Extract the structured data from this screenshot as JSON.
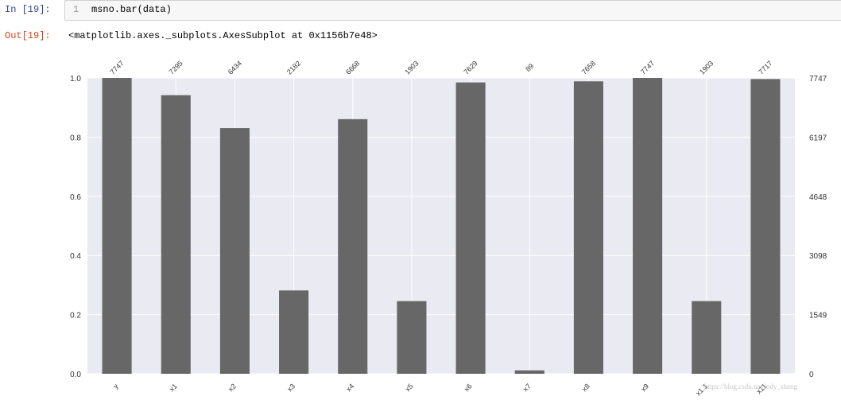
{
  "cell": {
    "in_prompt": "In [19]:",
    "line_number": "1",
    "code": "msno.bar(data)",
    "out_prompt": "Out[19]:",
    "output": "<matplotlib.axes._subplots.AxesSubplot at 0x1156b7e48>"
  },
  "watermark": "https://blog.csdn.net/lody_sheng",
  "colors": {
    "bar": "#676767",
    "plot_bg": "#eaeaf2",
    "grid": "#ffffff",
    "in_prompt": "#303f9f",
    "out_prompt": "#d84315"
  },
  "chart_data": {
    "type": "bar",
    "categories": [
      "y",
      "x1",
      "x2",
      "x3",
      "x4",
      "x5",
      "x6",
      "x7",
      "x8",
      "x9",
      "x1.1",
      "x11"
    ],
    "values": [
      7747,
      7295,
      6434,
      2182,
      6668,
      1903,
      7629,
      89,
      7658,
      7747,
      1903,
      7717
    ],
    "top_labels": [
      "7747",
      "7295",
      "6434",
      "2182",
      "6668",
      "1903",
      "7629",
      "89",
      "7658",
      "7747",
      "1903",
      "7717"
    ],
    "left_ticks": [
      "0.0",
      "0.2",
      "0.4",
      "0.6",
      "0.8",
      "1.0"
    ],
    "right_ticks": [
      "0",
      "1549",
      "3098",
      "4648",
      "6197",
      "7747"
    ],
    "ylim": [
      0,
      1
    ],
    "total": 7747,
    "grid": true
  }
}
